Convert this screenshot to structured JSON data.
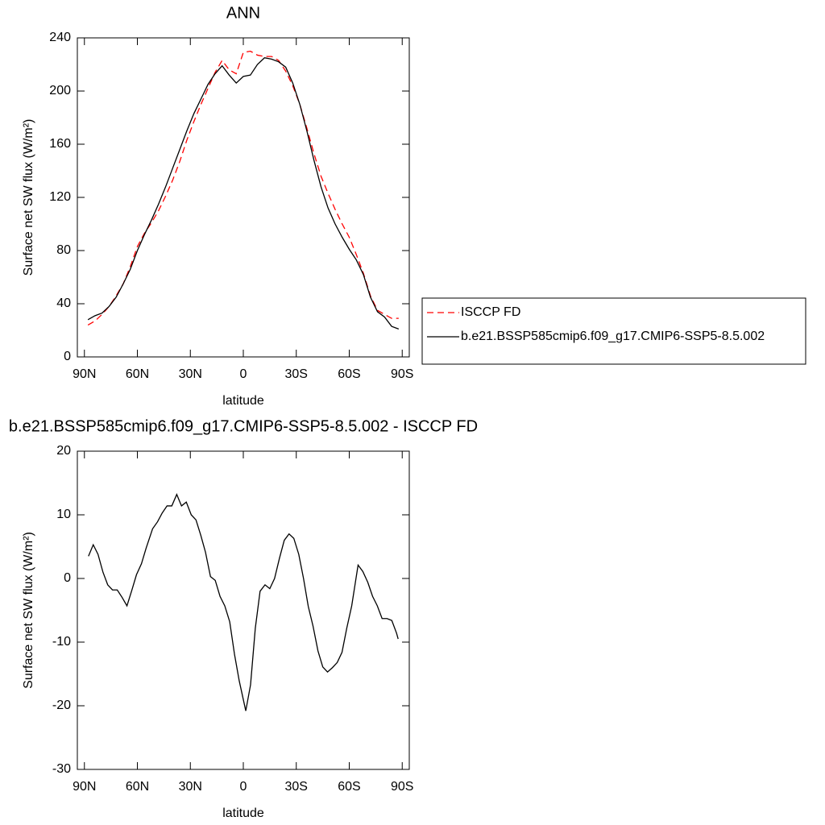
{
  "chart_data": [
    {
      "type": "line",
      "title": "ANN",
      "xlabel": "latitude",
      "ylabel": "Surface net SW flux (W/m²)",
      "x": [
        88,
        84,
        80,
        76,
        72,
        68,
        64,
        60,
        56,
        52,
        48,
        44,
        40,
        36,
        32,
        28,
        24,
        20,
        16,
        12,
        8,
        4,
        0,
        -4,
        -8,
        -12,
        -16,
        -20,
        -24,
        -28,
        -32,
        -36,
        -40,
        -44,
        -48,
        -52,
        -56,
        -60,
        -64,
        -68,
        -72,
        -76,
        -80,
        -84,
        -88
      ],
      "series": [
        {
          "name": "ISCCP FD",
          "color": "#ff0000",
          "line_style": "dashed",
          "values": [
            24,
            27,
            32,
            38,
            46,
            55,
            68,
            83,
            93,
            101,
            110,
            121,
            133,
            147,
            163,
            177,
            190,
            202,
            214,
            223,
            216,
            213,
            229,
            230,
            227,
            226,
            226,
            223,
            215,
            204,
            190,
            172,
            153,
            136,
            123,
            111,
            100,
            90,
            77,
            63,
            46,
            35,
            32,
            29,
            29
          ]
        },
        {
          "name": "b.e21.BSSP585cmip6.f09_g17.CMIP6-SSP5-8.5.002",
          "color": "#000000",
          "line_style": "solid",
          "values": [
            28,
            31,
            33,
            38,
            45,
            55,
            66,
            80,
            92,
            103,
            115,
            128,
            142,
            156,
            170,
            183,
            194,
            205,
            213,
            219,
            212,
            206,
            211,
            212,
            220,
            225,
            224,
            222,
            218,
            206,
            190,
            170,
            148,
            128,
            112,
            100,
            90,
            81,
            73,
            62,
            45,
            34,
            30,
            23,
            21
          ]
        }
      ],
      "xlim": [
        94,
        -94
      ],
      "xticks": [
        {
          "value": 90,
          "label": "90N"
        },
        {
          "value": 60,
          "label": "60N"
        },
        {
          "value": 30,
          "label": "30N"
        },
        0,
        {
          "value": -30,
          "label": "30S"
        },
        {
          "value": -60,
          "label": "60S"
        },
        {
          "value": -90,
          "label": "90S"
        }
      ],
      "ylim": [
        0,
        240
      ],
      "yticks": [
        0,
        40,
        80,
        120,
        160,
        200,
        240
      ],
      "legend": "right"
    },
    {
      "type": "line",
      "title": "b.e21.BSSP585cmip6.f09_g17.CMIP6-SSP5-8.5.002 - ISCCP FD",
      "xlabel": "latitude",
      "ylabel": "Surface net SW flux (W/m²)",
      "x": [
        87.7,
        85.0,
        82.3,
        79.5,
        76.8,
        74.1,
        71.4,
        68.6,
        65.9,
        63.2,
        60.5,
        57.7,
        55.0,
        51.4,
        48.6,
        45.9,
        43.2,
        40.5,
        37.7,
        35.0,
        32.3,
        29.5,
        26.8,
        24.1,
        21.4,
        18.6,
        15.9,
        13.2,
        10.5,
        7.7,
        5.0,
        2.3,
        -1.4,
        -4.1,
        -6.8,
        -9.5,
        -12.3,
        -15.0,
        -17.7,
        -20.5,
        -23.2,
        -25.9,
        -28.6,
        -31.4,
        -34.1,
        -36.8,
        -39.5,
        -42.3,
        -45.0,
        -47.7,
        -50.5,
        -53.2,
        -55.9,
        -58.6,
        -61.4,
        -65.0,
        -67.7,
        -70.5,
        -73.2,
        -75.9,
        -78.6,
        -81.4,
        -84.1,
        -86.8,
        -87.7
      ],
      "series": [
        {
          "color": "#000000",
          "line_style": "solid",
          "values": [
            3.5,
            5.3,
            3.8,
            1,
            -1,
            -1.8,
            -1.8,
            -3,
            -4.3,
            -1.9,
            0.6,
            2.3,
            4.8,
            7.8,
            8.9,
            10.3,
            11.4,
            11.4,
            13.2,
            11.4,
            12,
            10,
            9.2,
            6.8,
            4.1,
            0.3,
            -0.3,
            -2.8,
            -4.3,
            -6.8,
            -11.9,
            -16.1,
            -20.8,
            -16.7,
            -7.8,
            -2,
            -1,
            -1.6,
            0,
            3.2,
            6,
            7,
            6.3,
            3.8,
            0,
            -4.4,
            -7.5,
            -11.4,
            -13.9,
            -14.7,
            -14,
            -13.2,
            -11.6,
            -7.8,
            -4.3,
            2.1,
            1.1,
            -0.6,
            -2.8,
            -4.3,
            -6.3,
            -6.3,
            -6.6,
            -8.6,
            -9.5
          ]
        }
      ],
      "xlim": [
        94,
        -94
      ],
      "xticks": [
        {
          "value": 90,
          "label": "90N"
        },
        {
          "value": 60,
          "label": "60N"
        },
        {
          "value": 30,
          "label": "30N"
        },
        0,
        {
          "value": -30,
          "label": "30S"
        },
        {
          "value": -60,
          "label": "60S"
        },
        {
          "value": -90,
          "label": "90S"
        }
      ],
      "ylim": [
        -30,
        20
      ],
      "yticks": [
        -30,
        -20,
        -10,
        0,
        10,
        20
      ]
    }
  ]
}
